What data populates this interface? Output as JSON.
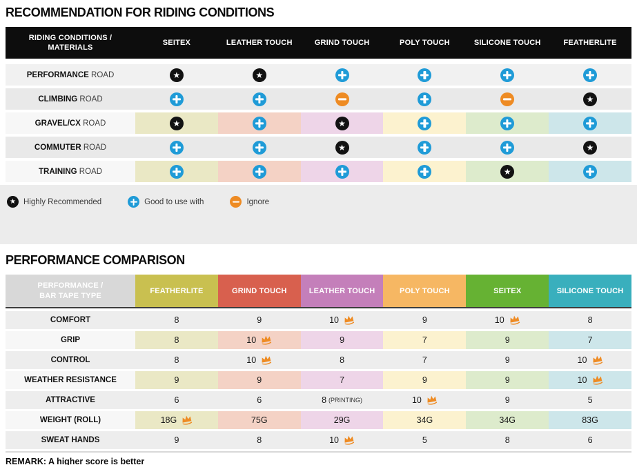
{
  "colors": {
    "header_black": "#0d0d0d",
    "corner_gray": "#d8d8d8",
    "row_light": "#f1f1f1",
    "row_dark": "#e9e9e9",
    "row_gray2": "#ededed",
    "colored_row_label_bg": "#f7f7f7",
    "pale_cells": [
      "#eae8c5",
      "#f4d2c5",
      "#eed5e8",
      "#fcf2cf",
      "#ddebcc",
      "#cde6ea"
    ],
    "icon": {
      "star": "#121212",
      "plus": "#1f9bd7",
      "minus": "#ee8b23"
    },
    "crown": "#ee8b23"
  },
  "chart_data": [
    {
      "type": "table",
      "title": "RECOMMENDATION FOR RIDING CONDITIONS",
      "corner_line1": "RIDING CONDITIONS /",
      "corner_line2": "MATERIALS",
      "columns": [
        "SEITEX",
        "LEATHER TOUCH",
        "GRIND TOUCH",
        "POLY TOUCH",
        "SILICONE TOUCH",
        "FEATHERLITE"
      ],
      "rows": [
        {
          "label_bold": "PERFORMANCE",
          "label_tail": "ROAD",
          "colored": false,
          "cells": [
            "star",
            "star",
            "plus",
            "plus",
            "plus",
            "plus"
          ]
        },
        {
          "label_bold": "CLIMBING",
          "label_tail": "ROAD",
          "colored": false,
          "cells": [
            "plus",
            "plus",
            "minus",
            "plus",
            "minus",
            "star"
          ]
        },
        {
          "label_bold": "GRAVEL/CX",
          "label_tail": "ROAD",
          "colored": true,
          "cells": [
            "star",
            "plus",
            "star",
            "plus",
            "plus",
            "plus"
          ]
        },
        {
          "label_bold": "COMMUTER",
          "label_tail": "ROAD",
          "colored": false,
          "cells": [
            "plus",
            "plus",
            "star",
            "plus",
            "plus",
            "star"
          ]
        },
        {
          "label_bold": "TRAINING",
          "label_tail": "ROAD",
          "colored": true,
          "cells": [
            "plus",
            "plus",
            "plus",
            "plus",
            "star",
            "plus"
          ]
        }
      ],
      "legend": [
        {
          "icon": "star",
          "label": "Highly Recommended"
        },
        {
          "icon": "plus",
          "label": "Good to use with"
        },
        {
          "icon": "minus",
          "label": "Ignore"
        }
      ]
    },
    {
      "type": "table",
      "title": "PERFORMANCE COMPARISON",
      "corner_line1": "PERFORMANCE /",
      "corner_line2": "BAR TAPE TYPE",
      "columns": [
        {
          "label": "FEATHERLITE",
          "color": "#c9c050"
        },
        {
          "label": "GRIND TOUCH",
          "color": "#d8604e"
        },
        {
          "label": "LEATHER TOUCH",
          "color": "#c47fba"
        },
        {
          "label": "POLY TOUCH",
          "color": "#f6b763"
        },
        {
          "label": "SEITEX",
          "color": "#66b233"
        },
        {
          "label": "SILICONE TOUCH",
          "color": "#39afbd"
        }
      ],
      "rows": [
        {
          "label": "COMFORT",
          "colored": false,
          "cells": [
            {
              "v": "8"
            },
            {
              "v": "9"
            },
            {
              "v": "10",
              "crown": true
            },
            {
              "v": "9"
            },
            {
              "v": "10",
              "crown": true
            },
            {
              "v": "8"
            }
          ]
        },
        {
          "label": "GRIP",
          "colored": true,
          "cells": [
            {
              "v": "8"
            },
            {
              "v": "10",
              "crown": true
            },
            {
              "v": "9"
            },
            {
              "v": "7"
            },
            {
              "v": "9"
            },
            {
              "v": "7"
            }
          ]
        },
        {
          "label": "CONTROL",
          "colored": false,
          "cells": [
            {
              "v": "8"
            },
            {
              "v": "10",
              "crown": true
            },
            {
              "v": "8"
            },
            {
              "v": "7"
            },
            {
              "v": "9"
            },
            {
              "v": "10",
              "crown": true
            }
          ]
        },
        {
          "label": "WEATHER RESISTANCE",
          "colored": true,
          "cells": [
            {
              "v": "9"
            },
            {
              "v": "9"
            },
            {
              "v": "7"
            },
            {
              "v": "9"
            },
            {
              "v": "9"
            },
            {
              "v": "10",
              "crown": true
            }
          ]
        },
        {
          "label": "ATTRACTIVE",
          "colored": false,
          "cells": [
            {
              "v": "6"
            },
            {
              "v": "6"
            },
            {
              "v": "8",
              "note": "(PRINTING)"
            },
            {
              "v": "10",
              "crown": true
            },
            {
              "v": "9"
            },
            {
              "v": "5"
            }
          ]
        },
        {
          "label": "WEIGHT (ROLL)",
          "colored": true,
          "cells": [
            {
              "v": "18G",
              "crown": true
            },
            {
              "v": "75G"
            },
            {
              "v": "29G"
            },
            {
              "v": "34G"
            },
            {
              "v": "34G"
            },
            {
              "v": "83G"
            }
          ]
        },
        {
          "label": "SWEAT HANDS",
          "colored": false,
          "cells": [
            {
              "v": "9"
            },
            {
              "v": "8"
            },
            {
              "v": "10",
              "crown": true
            },
            {
              "v": "5"
            },
            {
              "v": "8"
            },
            {
              "v": "6"
            }
          ]
        }
      ],
      "remark": "REMARK: A higher score is better"
    }
  ]
}
